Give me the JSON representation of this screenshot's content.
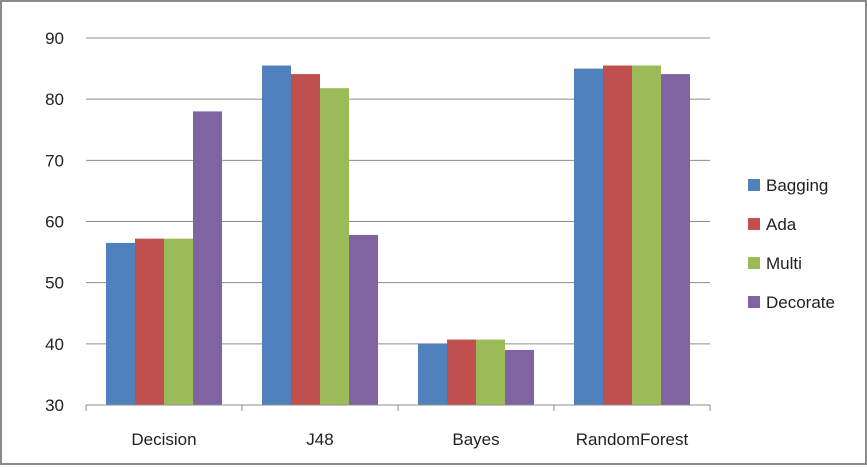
{
  "chart_data": {
    "type": "bar",
    "title": "",
    "xlabel": "",
    "ylabel": "",
    "categories": [
      "Decision",
      "J48",
      "Bayes",
      "RandomForest"
    ],
    "series": [
      {
        "name": "Bagging",
        "color": "#4f81bd",
        "values": [
          56.5,
          85.5,
          40.0,
          85.0
        ]
      },
      {
        "name": "Ada",
        "color": "#c0504d",
        "values": [
          57.2,
          84.1,
          40.7,
          85.5
        ]
      },
      {
        "name": "Multi",
        "color": "#9bbb59",
        "values": [
          57.2,
          81.8,
          40.7,
          85.5
        ]
      },
      {
        "name": "Decorate",
        "color": "#8064a2",
        "values": [
          78.0,
          57.8,
          39.0,
          84.1
        ]
      }
    ],
    "ylim": [
      30,
      90
    ],
    "yticks": [
      30,
      40,
      50,
      60,
      70,
      80,
      90
    ],
    "grid": true,
    "legend_position": "right"
  }
}
